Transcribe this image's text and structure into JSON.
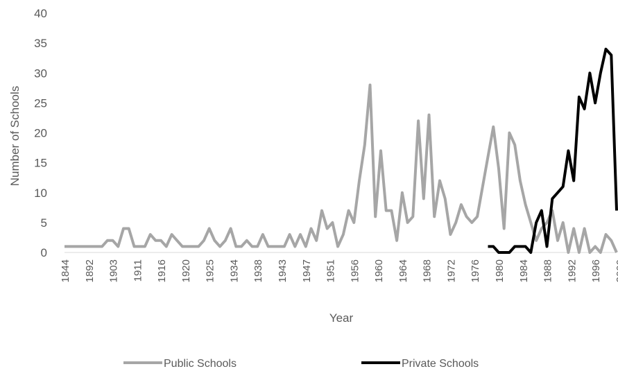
{
  "chart_data": {
    "type": "line",
    "title": "",
    "xlabel": "Year",
    "ylabel": "Number of Schools",
    "ylim": [
      0,
      40
    ],
    "yticks": [
      0,
      5,
      10,
      15,
      20,
      25,
      30,
      35,
      40
    ],
    "grid": false,
    "legend_position": "bottom",
    "x_tick_labels": [
      "1844",
      "1892",
      "1903",
      "1911",
      "1916",
      "1920",
      "1925",
      "1934",
      "1938",
      "1943",
      "1947",
      "1951",
      "1956",
      "1960",
      "1964",
      "1968",
      "1972",
      "1976",
      "1980",
      "1984",
      "1988",
      "1992",
      "1996",
      "2000"
    ],
    "series": [
      {
        "name": "Public Schools",
        "color": "#a6a6a6",
        "values": [
          1,
          1,
          1,
          1,
          1,
          1,
          1,
          1,
          2,
          2,
          1,
          4,
          4,
          1,
          1,
          1,
          3,
          2,
          2,
          1,
          3,
          2,
          1,
          1,
          1,
          1,
          2,
          4,
          2,
          1,
          2,
          4,
          1,
          1,
          2,
          1,
          1,
          3,
          1,
          1,
          1,
          1,
          3,
          1,
          3,
          1,
          4,
          2,
          7,
          4,
          5,
          1,
          3,
          7,
          5,
          12,
          18,
          28,
          6,
          17,
          7,
          7,
          2,
          10,
          5,
          6,
          22,
          9,
          23,
          6,
          12,
          9,
          3,
          5,
          8,
          6,
          5,
          6,
          11,
          16,
          21,
          14,
          4,
          20,
          18,
          12,
          8,
          5,
          2,
          4,
          5,
          7,
          2,
          5,
          0,
          4,
          0,
          4,
          0,
          1,
          0,
          3,
          2,
          0
        ]
      },
      {
        "name": "Private Schools",
        "color": "#000000",
        "start_index": 79,
        "values": [
          1,
          1,
          0,
          0,
          0,
          1,
          1,
          1,
          0,
          5,
          7,
          1,
          9,
          10,
          11,
          17,
          12,
          26,
          24,
          30,
          25,
          30,
          34,
          33,
          7
        ]
      }
    ]
  }
}
